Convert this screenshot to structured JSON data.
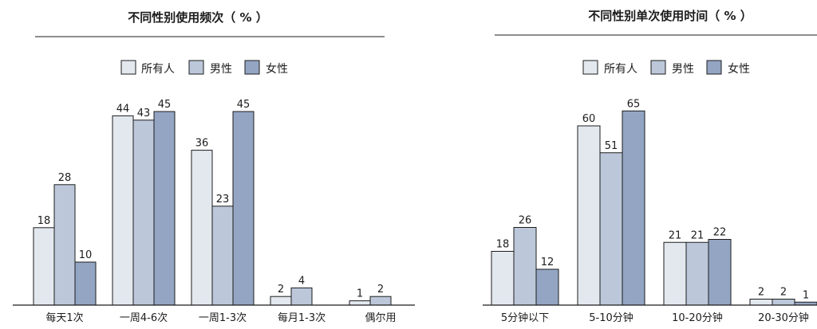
{
  "colors": {
    "all": "#e3e8ef",
    "male": "#bcc8da",
    "female": "#93a5c3",
    "stroke": "#1c1c1c"
  },
  "legend_labels": [
    "所有人",
    "男性",
    "女性"
  ],
  "chart_data": [
    {
      "type": "bar",
      "title": "不同性别使用频次（ % ）",
      "categories": [
        "每天1次",
        "一周4-6次",
        "一周1-3次",
        "每月1-3次",
        "偶尔用"
      ],
      "series": [
        {
          "name": "所有人",
          "values": [
            18,
            44,
            36,
            2,
            1
          ]
        },
        {
          "name": "男性",
          "values": [
            28,
            43,
            23,
            4,
            2
          ]
        },
        {
          "name": "女性",
          "values": [
            10,
            45,
            45,
            null,
            null
          ]
        }
      ],
      "data_labels": true,
      "legend": "top",
      "grid": false
    },
    {
      "type": "bar",
      "title": "不同性别单次使用时间（ % ）",
      "categories": [
        "5分钟以下",
        "5-10分钟",
        "10-20分钟",
        "20-30分钟"
      ],
      "series": [
        {
          "name": "所有人",
          "values": [
            18,
            60,
            21,
            2
          ]
        },
        {
          "name": "男性",
          "values": [
            26,
            51,
            21,
            2
          ]
        },
        {
          "name": "女性",
          "values": [
            12,
            65,
            22,
            1
          ]
        }
      ],
      "data_labels": true,
      "legend": "top",
      "grid": false
    }
  ]
}
